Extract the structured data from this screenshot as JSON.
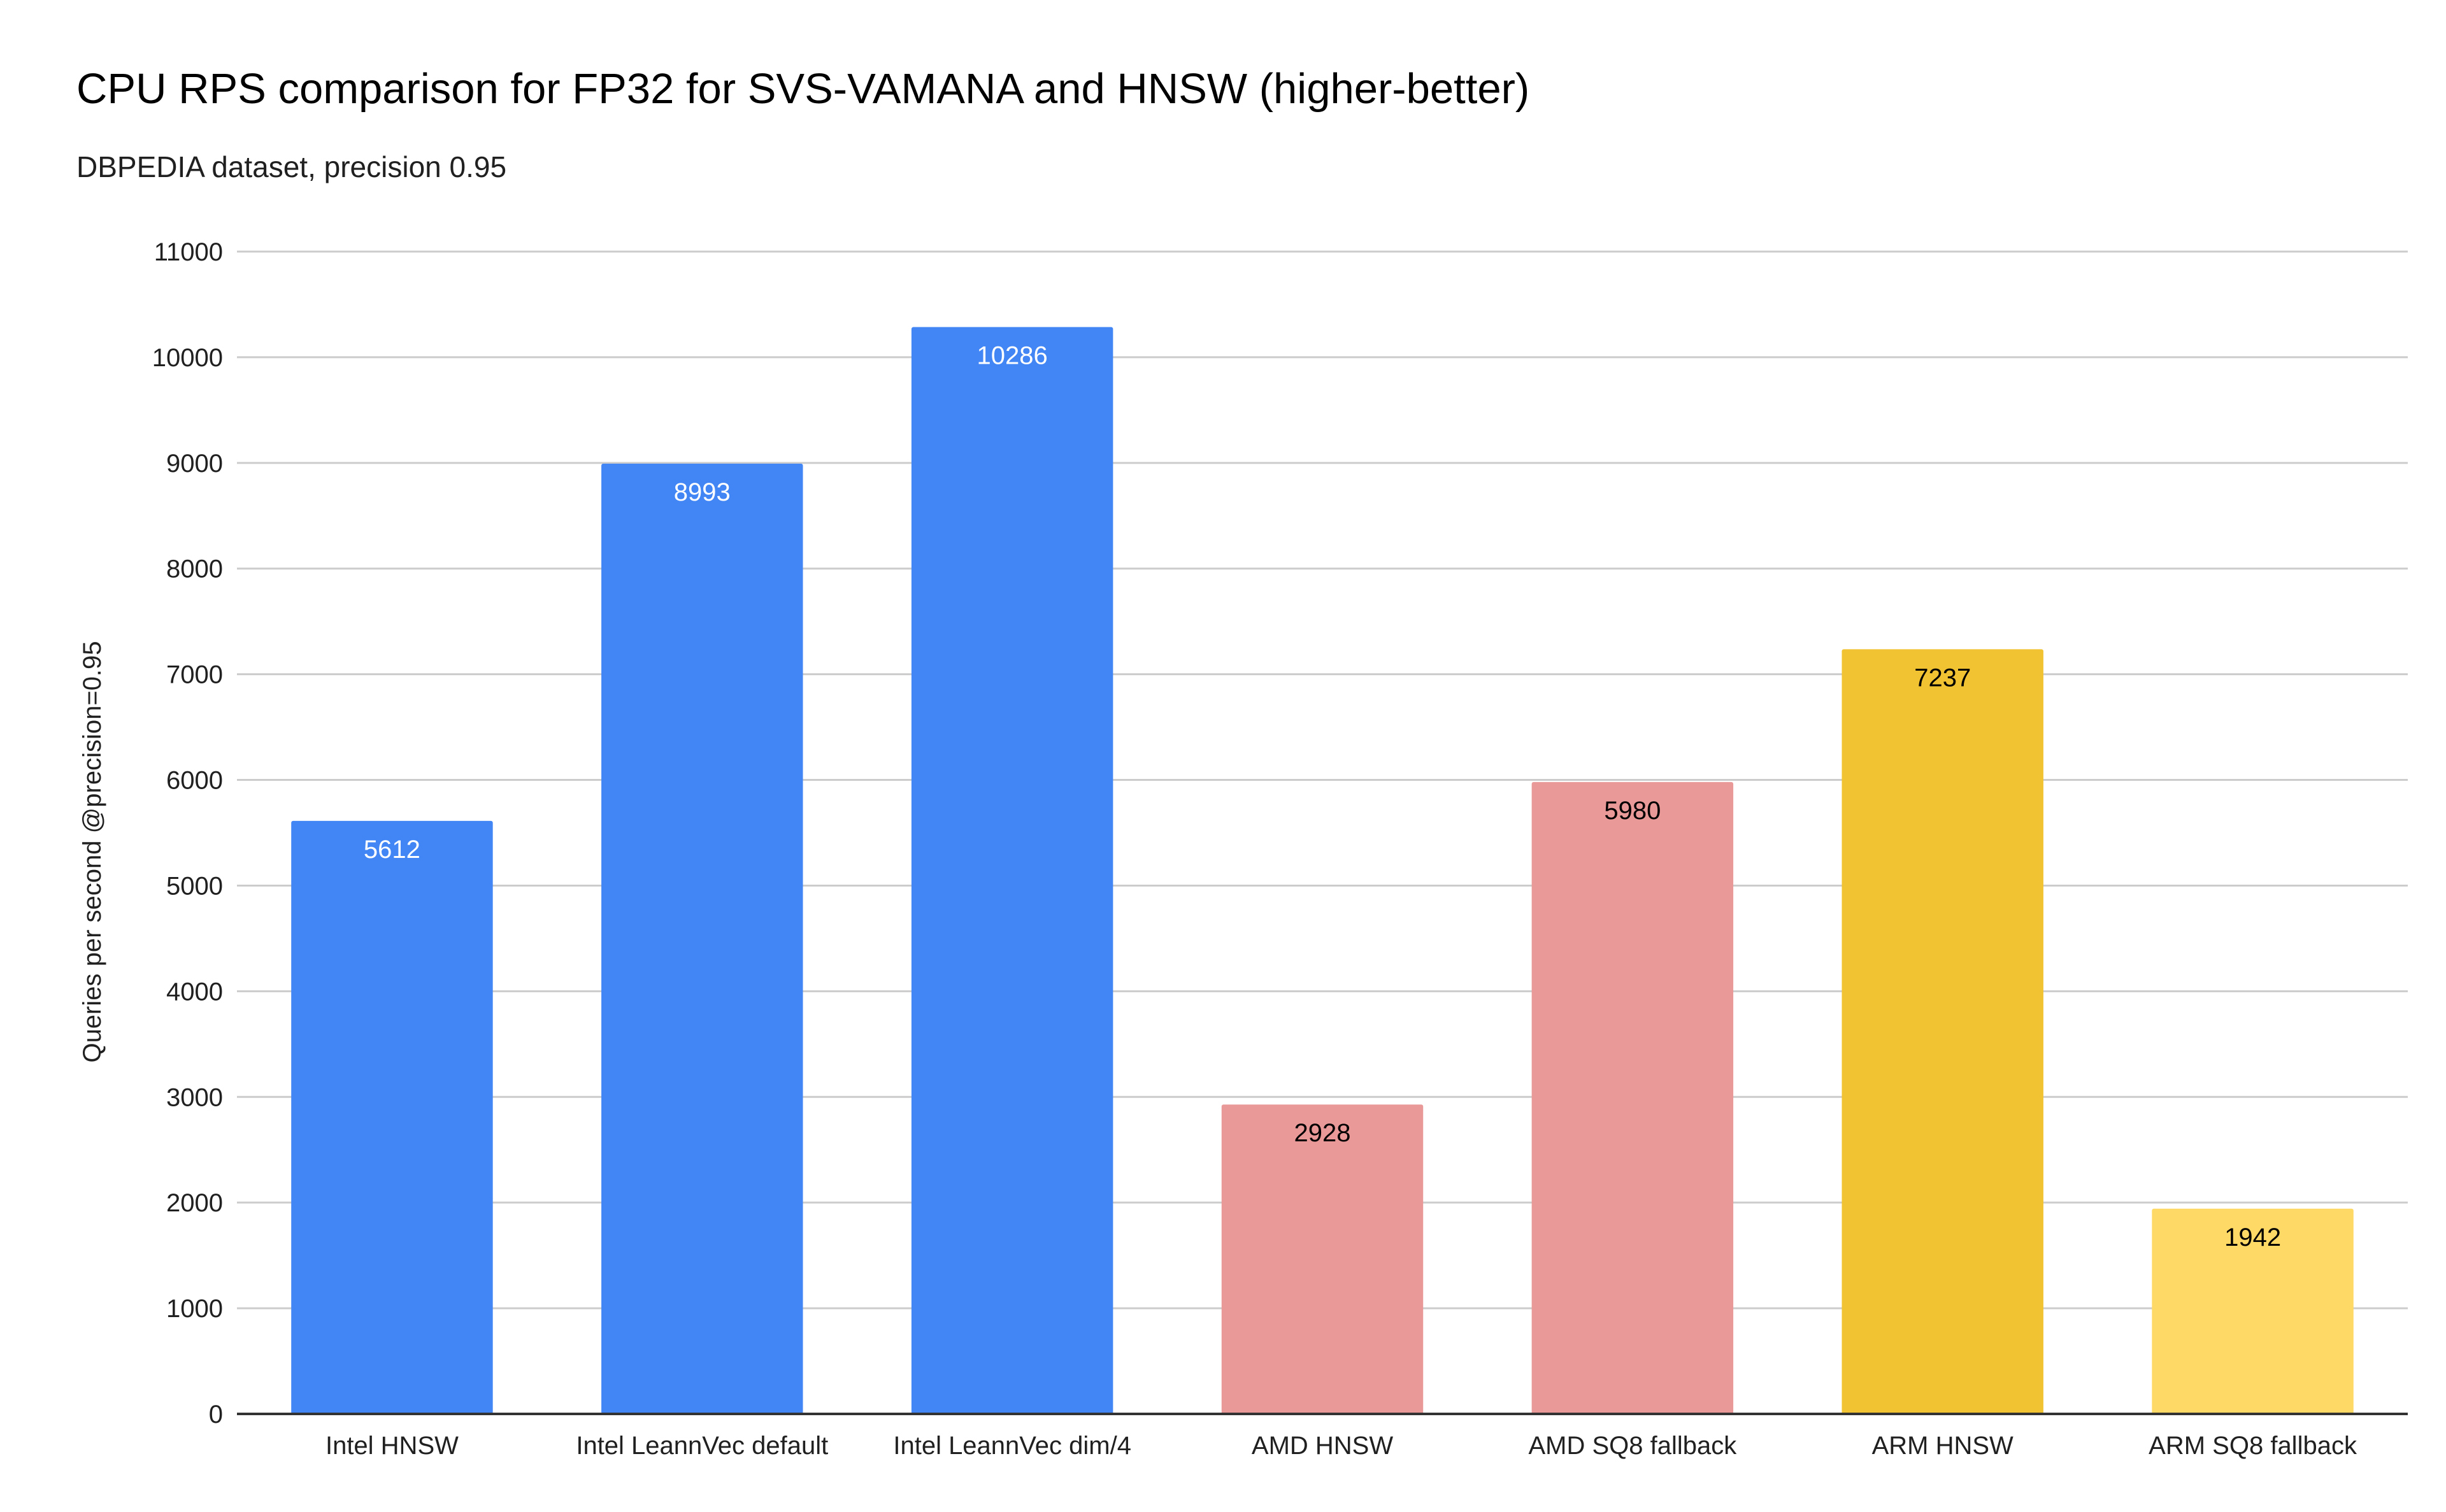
{
  "chart_data": {
    "type": "bar",
    "title": "CPU RPS comparison for FP32 for SVS-VAMANA and HNSW (higher-better)",
    "subtitle": "DBPEDIA dataset, precision 0.95",
    "xlabel": "",
    "ylabel": "Queries per second @precision=0.95",
    "ylim": [
      0,
      11000
    ],
    "yticks": [
      0,
      1000,
      2000,
      3000,
      4000,
      5000,
      6000,
      7000,
      8000,
      9000,
      10000,
      11000
    ],
    "grid": true,
    "categories": [
      "Intel HNSW",
      "Intel LeannVec default",
      "Intel LeannVec dim/4",
      "AMD HNSW",
      "AMD SQ8 fallback",
      "ARM HNSW",
      "ARM SQ8 fallback"
    ],
    "values": [
      5612,
      8993,
      10286,
      2928,
      5980,
      7237,
      1942
    ],
    "bar_colors": [
      "#4285f4",
      "#4285f4",
      "#4285f4",
      "#ea9999",
      "#ea9999",
      "#f1c232",
      "#ffd966"
    ],
    "label_colors": [
      "#ffffff",
      "#ffffff",
      "#ffffff",
      "#000000",
      "#000000",
      "#000000",
      "#000000"
    ]
  }
}
